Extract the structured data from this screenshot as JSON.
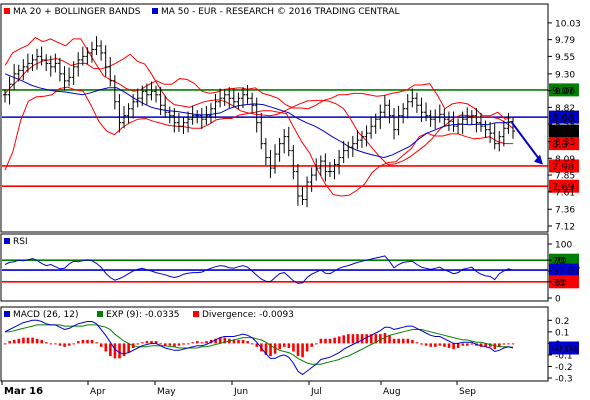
{
  "chart_data": [
    {
      "type": "ohlc",
      "title": "MA 20 + BOLLINGER BANDS",
      "subtitle": "MA 50 - EUR - RESEARCH © 2016 TRADING CENTRAL",
      "legend": [
        {
          "label": "MA 20 + BOLLINGER BANDS",
          "color": "#ff0000"
        },
        {
          "label": "MA 50 - EUR - RESEARCH © 2016 TRADING CENTRAL",
          "color": "#0000cc"
        }
      ],
      "y_ticks": [
        "10.03",
        "9.79",
        "9.55",
        "9.30",
        "9.06",
        "8.82",
        "8.58",
        "8.33",
        "8.09",
        "7.85",
        "7.61",
        "7.36",
        "7.12"
      ],
      "ylim": [
        7.12,
        10.1
      ],
      "x_ticks": [
        "Mar 16",
        "Apr",
        "May",
        "Jun",
        "Jul",
        "Aug",
        "Sep"
      ],
      "levels": [
        {
          "value": 9.07,
          "label": "9.07",
          "color": "#008000"
        },
        {
          "value": 8.68,
          "label": "8.68",
          "color": "#0000cc"
        },
        {
          "value": 8.48,
          "label": "8.48",
          "color": "#000000"
        },
        {
          "value": 8.3,
          "label": "8.3",
          "color": "#ff0000"
        },
        {
          "value": 7.98,
          "label": "7.98",
          "color": "#ff0000"
        },
        {
          "value": 7.69,
          "label": "7.69",
          "color": "#ff0000"
        }
      ],
      "series": {
        "close": [
          9.0,
          9.15,
          9.3,
          9.35,
          9.4,
          9.45,
          9.5,
          9.55,
          9.5,
          9.45,
          9.4,
          9.45,
          9.3,
          9.2,
          9.25,
          9.4,
          9.5,
          9.55,
          9.6,
          9.65,
          9.7,
          9.6,
          9.4,
          9.2,
          8.9,
          8.6,
          8.7,
          8.8,
          8.9,
          8.95,
          9.05,
          9.0,
          9.05,
          9.0,
          8.85,
          8.75,
          8.7,
          8.6,
          8.55,
          8.6,
          8.65,
          8.7,
          8.7,
          8.65,
          8.7,
          8.8,
          8.9,
          8.95,
          9.0,
          8.95,
          8.9,
          8.95,
          9.0,
          8.95,
          8.85,
          8.6,
          8.3,
          8.1,
          7.95,
          8.15,
          8.3,
          8.4,
          8.2,
          7.9,
          7.55,
          7.5,
          7.75,
          7.85,
          7.95,
          8.05,
          7.9,
          7.9,
          8.0,
          8.1,
          8.2,
          8.25,
          8.3,
          8.35,
          8.4,
          8.45,
          8.55,
          8.65,
          8.75,
          8.85,
          8.7,
          8.5,
          8.7,
          8.8,
          8.9,
          8.95,
          8.85,
          8.75,
          8.7,
          8.65,
          8.68,
          8.72,
          8.65,
          8.62,
          8.55,
          8.58,
          8.65,
          8.68,
          8.7,
          8.6,
          8.55,
          8.5,
          8.45,
          8.3,
          8.4,
          8.52,
          8.6,
          8.48
        ],
        "ma20": [
          9.02,
          9.13,
          9.23,
          9.35,
          9.43,
          9.48,
          9.5,
          9.52,
          9.48,
          9.42,
          9.45,
          9.45,
          9.38,
          9.37,
          9.4,
          9.45,
          9.51,
          9.58,
          9.48,
          9.44,
          9.28,
          9.1,
          8.94,
          8.86,
          8.84,
          8.82,
          8.86,
          8.9,
          8.92,
          8.93,
          8.9,
          8.84,
          8.77,
          8.74,
          8.72,
          8.71,
          8.7,
          8.72,
          8.77,
          8.82,
          8.87,
          8.91,
          8.92,
          8.92,
          8.91,
          8.87,
          8.8,
          8.64,
          8.46,
          8.35,
          8.22,
          8.1,
          8.0,
          8.01,
          8.05,
          8.11,
          8.19,
          8.27,
          8.37,
          8.5,
          8.58,
          8.67,
          8.71,
          8.7,
          8.68,
          8.68,
          8.68,
          8.66,
          8.6,
          8.52
        ],
        "ma20_start_index": 0,
        "bollinger_upper": [
          9.42,
          9.6,
          9.66,
          9.71,
          9.82,
          9.76,
          9.8,
          9.75,
          9.7,
          9.8,
          9.8,
          9.62,
          9.44,
          9.27,
          9.21,
          9.16,
          9.09,
          9.05,
          9.08,
          9.15,
          9.2,
          9.15,
          9.15,
          9.23,
          9.22,
          9.16,
          9.05,
          9.02,
          9.04,
          9.08,
          9.09,
          9.1,
          9.08,
          9.1,
          9.02,
          8.99,
          8.95,
          8.86,
          8.81,
          8.81,
          8.8,
          8.85,
          8.92,
          8.95,
          9.0,
          9.0,
          9.02,
          9.02,
          9.0,
          8.98,
          8.99,
          9.02,
          9.04,
          9.07,
          9.14,
          9.14,
          9.16,
          9.0,
          8.8,
          8.87,
          8.89,
          8.87,
          8.8,
          8.7,
          8.7,
          8.75,
          8.65,
          8.68
        ],
        "bollinger_lower": [
          7.92,
          8.18,
          8.63,
          8.91,
          8.97,
          8.98,
          9.0,
          9.09,
          9.11,
          9.07,
          9.05,
          8.85,
          8.62,
          8.48,
          8.43,
          8.53,
          8.6,
          8.65,
          8.66,
          8.62,
          8.59,
          8.56,
          8.55,
          8.54,
          8.52,
          8.52,
          8.57,
          8.64,
          8.66,
          8.66,
          8.71,
          8.73,
          8.75,
          8.77,
          8.77,
          8.75,
          8.73,
          8.52,
          8.32,
          8.16,
          7.92,
          7.72,
          7.57,
          7.55,
          7.56,
          7.63,
          7.72,
          7.89,
          7.98,
          8.03,
          8.04,
          8.14,
          8.23,
          8.4,
          8.45,
          8.41,
          8.41,
          8.44,
          8.44,
          8.4,
          8.37,
          8.38,
          8.4,
          8.33,
          8.3,
          8.3
        ],
        "ma50": [
          9.3,
          9.25,
          9.2,
          9.14,
          9.1,
          9.07,
          9.05,
          9.04,
          9.02,
          9.0,
          9.03,
          9.07,
          9.1,
          9.1,
          9.03,
          8.95,
          8.88,
          8.82,
          8.79,
          8.77,
          8.76,
          8.74,
          8.72,
          8.71,
          8.72,
          8.74,
          8.8,
          8.84,
          8.86,
          8.87,
          8.86,
          8.82,
          8.78,
          8.74,
          8.66,
          8.6,
          8.55,
          8.48,
          8.4,
          8.33,
          8.25,
          8.2,
          8.16,
          8.13,
          8.1,
          8.14,
          8.2,
          8.26,
          8.36,
          8.45,
          8.5,
          8.55,
          8.57,
          8.58,
          8.57,
          8.58,
          8.57,
          8.6,
          8.6,
          8.62
        ]
      },
      "forecast_arrow": {
        "from": 8.6,
        "to": 8.0
      },
      "grid": false
    },
    {
      "type": "line",
      "title": "RSI",
      "y_ticks": [
        "100",
        "70",
        "50",
        "30",
        "0"
      ],
      "ylim": [
        0,
        100
      ],
      "levels": [
        {
          "value": 70,
          "label": "70",
          "color": "#008000"
        },
        {
          "value": 51.67,
          "label": "51.67",
          "color": "#0000cc"
        },
        {
          "value": 30,
          "label": "30",
          "color": "#ff0000"
        }
      ],
      "values": [
        62,
        66,
        67,
        70,
        69,
        71,
        73,
        70,
        64,
        60,
        62,
        58,
        54,
        55,
        63,
        68,
        67,
        69,
        71,
        69,
        64,
        57,
        46,
        38,
        33,
        36,
        40,
        45,
        50,
        53,
        55,
        52,
        50,
        47,
        45,
        43,
        40,
        38,
        40,
        44,
        46,
        47,
        47,
        48,
        52,
        55,
        58,
        60,
        59,
        56,
        55,
        58,
        60,
        57,
        50,
        42,
        35,
        31,
        30,
        38,
        45,
        47,
        40,
        32,
        27,
        28,
        38,
        44,
        48,
        52,
        46,
        45,
        50,
        55,
        58,
        60,
        63,
        66,
        68,
        70,
        72,
        74,
        76,
        78,
        68,
        56,
        62,
        66,
        67,
        68,
        62,
        57,
        55,
        53,
        55,
        57,
        52,
        49,
        45,
        47,
        53,
        55,
        57,
        49,
        44,
        41,
        40,
        34,
        45,
        50,
        54,
        51.67
      ]
    },
    {
      "type": "bar",
      "title": "MACD (26, 12)",
      "legend": [
        {
          "label": "MACD (26, 12)",
          "color": "#0000cc"
        },
        {
          "label": "EXP (9): -0.0335",
          "color": "#008000"
        },
        {
          "label": "Divergence: -0.0093",
          "color": "#ff0000"
        }
      ],
      "y_ticks": [
        "0.2",
        "0.1",
        "0",
        "-0.1",
        "-0.2",
        "-0.3"
      ],
      "ylim": [
        -0.3,
        0.22
      ],
      "current_label": "-0.04",
      "macd": [
        0.1,
        0.12,
        0.14,
        0.16,
        0.18,
        0.19,
        0.2,
        0.2,
        0.19,
        0.17,
        0.16,
        0.16,
        0.14,
        0.12,
        0.13,
        0.15,
        0.17,
        0.18,
        0.19,
        0.19,
        0.17,
        0.12,
        0.07,
        0.01,
        -0.05,
        -0.08,
        -0.09,
        -0.08,
        -0.06,
        -0.04,
        -0.02,
        -0.01,
        0.0,
        0.0,
        -0.02,
        -0.04,
        -0.05,
        -0.06,
        -0.06,
        -0.05,
        -0.04,
        -0.03,
        -0.02,
        -0.02,
        -0.01,
        0.01,
        0.03,
        0.05,
        0.06,
        0.06,
        0.06,
        0.07,
        0.08,
        0.07,
        0.05,
        0.01,
        -0.04,
        -0.09,
        -0.13,
        -0.13,
        -0.11,
        -0.1,
        -0.12,
        -0.17,
        -0.24,
        -0.27,
        -0.24,
        -0.21,
        -0.18,
        -0.14,
        -0.13,
        -0.12,
        -0.1,
        -0.08,
        -0.05,
        -0.03,
        -0.01,
        0.01,
        0.03,
        0.05,
        0.07,
        0.09,
        0.11,
        0.14,
        0.14,
        0.12,
        0.13,
        0.14,
        0.15,
        0.15,
        0.13,
        0.11,
        0.09,
        0.07,
        0.06,
        0.06,
        0.04,
        0.02,
        0.0,
        0.0,
        0.01,
        0.01,
        0.01,
        -0.01,
        -0.02,
        -0.03,
        -0.04,
        -0.07,
        -0.06,
        -0.04,
        -0.03,
        -0.04
      ],
      "signal": [
        0.1,
        0.1,
        0.11,
        0.12,
        0.13,
        0.14,
        0.15,
        0.16,
        0.16,
        0.16,
        0.16,
        0.16,
        0.16,
        0.15,
        0.15,
        0.15,
        0.15,
        0.15,
        0.16,
        0.16,
        0.16,
        0.15,
        0.14,
        0.12,
        0.08,
        0.05,
        0.02,
        0.0,
        -0.02,
        -0.03,
        -0.03,
        -0.03,
        -0.02,
        -0.02,
        -0.02,
        -0.02,
        -0.03,
        -0.03,
        -0.04,
        -0.04,
        -0.04,
        -0.04,
        -0.04,
        -0.03,
        -0.03,
        -0.02,
        -0.01,
        0.0,
        0.01,
        0.02,
        0.03,
        0.04,
        0.05,
        0.05,
        0.05,
        0.04,
        0.03,
        0.01,
        -0.02,
        -0.04,
        -0.06,
        -0.07,
        -0.08,
        -0.1,
        -0.13,
        -0.15,
        -0.17,
        -0.18,
        -0.18,
        -0.18,
        -0.17,
        -0.16,
        -0.15,
        -0.14,
        -0.12,
        -0.11,
        -0.09,
        -0.07,
        -0.05,
        -0.03,
        -0.01,
        0.01,
        0.03,
        0.05,
        0.07,
        0.08,
        0.09,
        0.1,
        0.11,
        0.12,
        0.12,
        0.12,
        0.11,
        0.1,
        0.09,
        0.08,
        0.07,
        0.06,
        0.05,
        0.04,
        0.03,
        0.03,
        0.02,
        0.01,
        0.01,
        0.0,
        -0.01,
        -0.02,
        -0.03,
        -0.03,
        -0.03,
        -0.0335
      ],
      "grid": false
    }
  ]
}
